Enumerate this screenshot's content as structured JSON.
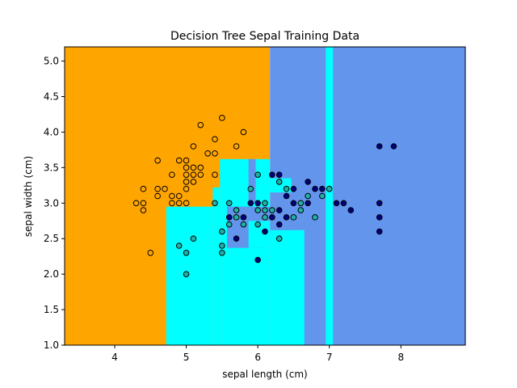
{
  "chart_data": {
    "type": "scatter",
    "title": "Decision Tree Sepal Training Data",
    "xlabel": "sepal length (cm)",
    "ylabel": "sepal width (cm)",
    "xlim": [
      3.3,
      8.9
    ],
    "ylim": [
      1.0,
      5.2
    ],
    "xticks": [
      4,
      5,
      6,
      7,
      8
    ],
    "yticks": [
      1.0,
      1.5,
      2.0,
      2.5,
      3.0,
      3.5,
      4.0,
      4.5,
      5.0
    ],
    "grid": false,
    "class_colors": {
      "orange": "#ffa500",
      "cyan": "#00ffff",
      "blue": "#6495ed"
    },
    "point_colors": {
      "orange": "#ffa500",
      "cyan": "#20b2aa",
      "blue": "#000080"
    },
    "regions": [
      {
        "class": "orange",
        "x": [
          3.3,
          6.17
        ],
        "y": [
          1.0,
          5.2
        ]
      },
      {
        "class": "blue",
        "x": [
          6.17,
          8.9
        ],
        "y": [
          1.0,
          5.2
        ]
      },
      {
        "class": "cyan",
        "x": [
          4.72,
          5.37
        ],
        "y": [
          1.0,
          2.95
        ]
      },
      {
        "class": "cyan",
        "x": [
          5.37,
          5.47
        ],
        "y": [
          1.0,
          3.22
        ]
      },
      {
        "class": "cyan",
        "x": [
          5.47,
          6.17
        ],
        "y": [
          1.0,
          3.62
        ]
      },
      {
        "class": "blue",
        "x": [
          5.57,
          6.17
        ],
        "y": [
          2.37,
          2.95
        ]
      },
      {
        "class": "cyan",
        "x": [
          5.87,
          6.17
        ],
        "y": [
          2.37,
          2.75
        ]
      },
      {
        "class": "blue",
        "x": [
          5.87,
          5.97
        ],
        "y": [
          3.02,
          3.62
        ]
      },
      {
        "class": "cyan",
        "x": [
          6.17,
          6.65
        ],
        "y": [
          1.0,
          2.62
        ]
      },
      {
        "class": "cyan",
        "x": [
          6.17,
          6.47
        ],
        "y": [
          3.15,
          3.35
        ]
      },
      {
        "class": "blue",
        "x": [
          6.2,
          6.47
        ],
        "y": [
          2.62,
          3.15
        ]
      },
      {
        "class": "cyan",
        "x": [
          6.95,
          7.05
        ],
        "y": [
          1.0,
          5.2
        ]
      }
    ],
    "series": [
      {
        "class": "orange",
        "points": [
          [
            4.3,
            3.0
          ],
          [
            4.4,
            3.0
          ],
          [
            4.4,
            2.9
          ],
          [
            4.4,
            3.2
          ],
          [
            4.5,
            2.3
          ],
          [
            4.6,
            3.1
          ],
          [
            4.6,
            3.2
          ],
          [
            4.6,
            3.6
          ],
          [
            4.7,
            3.2
          ],
          [
            4.8,
            3.0
          ],
          [
            4.8,
            3.1
          ],
          [
            4.8,
            3.4
          ],
          [
            4.9,
            3.0
          ],
          [
            4.9,
            3.1
          ],
          [
            4.9,
            3.6
          ],
          [
            5.0,
            3.0
          ],
          [
            5.0,
            3.2
          ],
          [
            5.0,
            3.3
          ],
          [
            5.0,
            3.4
          ],
          [
            5.0,
            3.5
          ],
          [
            5.0,
            3.6
          ],
          [
            5.1,
            3.3
          ],
          [
            5.1,
            3.4
          ],
          [
            5.1,
            3.5
          ],
          [
            5.1,
            3.8
          ],
          [
            5.2,
            3.4
          ],
          [
            5.2,
            3.5
          ],
          [
            5.2,
            4.1
          ],
          [
            5.3,
            3.7
          ],
          [
            5.4,
            3.4
          ],
          [
            5.4,
            3.7
          ],
          [
            5.4,
            3.9
          ],
          [
            5.5,
            4.2
          ],
          [
            5.7,
            3.8
          ],
          [
            5.8,
            4.0
          ]
        ]
      },
      {
        "class": "cyan",
        "points": [
          [
            4.9,
            2.4
          ],
          [
            5.0,
            2.0
          ],
          [
            5.0,
            2.3
          ],
          [
            5.1,
            2.5
          ],
          [
            5.4,
            3.0
          ],
          [
            5.5,
            2.3
          ],
          [
            5.5,
            2.4
          ],
          [
            5.5,
            2.6
          ],
          [
            5.6,
            2.7
          ],
          [
            5.6,
            3.0
          ],
          [
            5.7,
            2.8
          ],
          [
            5.7,
            2.9
          ],
          [
            5.8,
            2.7
          ],
          [
            5.9,
            3.2
          ],
          [
            6.0,
            2.7
          ],
          [
            6.0,
            2.9
          ],
          [
            6.0,
            3.4
          ],
          [
            6.1,
            2.8
          ],
          [
            6.1,
            2.9
          ],
          [
            6.1,
            3.0
          ],
          [
            6.2,
            2.9
          ],
          [
            6.3,
            2.5
          ],
          [
            6.3,
            3.3
          ],
          [
            6.4,
            3.2
          ],
          [
            6.5,
            2.8
          ],
          [
            6.6,
            2.9
          ],
          [
            6.6,
            3.0
          ],
          [
            6.7,
            3.1
          ],
          [
            6.8,
            2.8
          ],
          [
            6.9,
            3.1
          ],
          [
            7.0,
            3.2
          ]
        ]
      },
      {
        "class": "blue",
        "points": [
          [
            5.6,
            2.8
          ],
          [
            5.7,
            2.5
          ],
          [
            5.8,
            2.8
          ],
          [
            5.9,
            3.0
          ],
          [
            6.0,
            2.2
          ],
          [
            6.0,
            3.0
          ],
          [
            6.1,
            2.6
          ],
          [
            6.2,
            2.8
          ],
          [
            6.2,
            3.4
          ],
          [
            6.3,
            2.7
          ],
          [
            6.3,
            2.9
          ],
          [
            6.3,
            3.4
          ],
          [
            6.4,
            2.8
          ],
          [
            6.4,
            3.1
          ],
          [
            6.5,
            3.0
          ],
          [
            6.5,
            3.2
          ],
          [
            6.7,
            3.0
          ],
          [
            6.7,
            3.3
          ],
          [
            6.8,
            3.2
          ],
          [
            6.9,
            3.2
          ],
          [
            7.1,
            3.0
          ],
          [
            7.2,
            3.0
          ],
          [
            7.3,
            2.9
          ],
          [
            7.7,
            2.6
          ],
          [
            7.7,
            2.8
          ],
          [
            7.7,
            3.0
          ],
          [
            7.7,
            3.8
          ],
          [
            7.9,
            3.8
          ]
        ]
      }
    ]
  }
}
